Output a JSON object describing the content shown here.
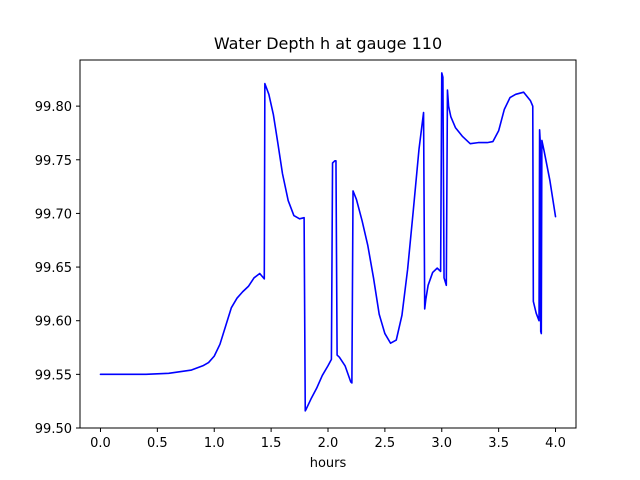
{
  "chart_data": {
    "type": "line",
    "title": "Water Depth h at gauge 110",
    "xlabel": "hours",
    "ylabel": "",
    "xlim": [
      -0.18,
      4.18
    ],
    "ylim": [
      99.5,
      99.843
    ],
    "x_ticks": [
      {
        "value": 0.0,
        "label": "0.0"
      },
      {
        "value": 0.5,
        "label": "0.5"
      },
      {
        "value": 1.0,
        "label": "1.0"
      },
      {
        "value": 1.5,
        "label": "1.5"
      },
      {
        "value": 2.0,
        "label": "2.0"
      },
      {
        "value": 2.5,
        "label": "2.5"
      },
      {
        "value": 3.0,
        "label": "3.0"
      },
      {
        "value": 3.5,
        "label": "3.5"
      },
      {
        "value": 4.0,
        "label": "4.0"
      }
    ],
    "y_ticks": [
      {
        "value": 99.5,
        "label": "99.50"
      },
      {
        "value": 99.55,
        "label": "99.55"
      },
      {
        "value": 99.6,
        "label": "99.60"
      },
      {
        "value": 99.65,
        "label": "99.65"
      },
      {
        "value": 99.7,
        "label": "99.70"
      },
      {
        "value": 99.75,
        "label": "99.75"
      },
      {
        "value": 99.8,
        "label": "99.80"
      }
    ],
    "grid": false,
    "legend": "none",
    "series": [
      {
        "color": "#0000ff",
        "x": [
          0.0,
          0.2,
          0.4,
          0.6,
          0.8,
          0.9,
          0.95,
          1.0,
          1.05,
          1.1,
          1.15,
          1.2,
          1.25,
          1.3,
          1.35,
          1.4,
          1.44,
          1.445,
          1.48,
          1.52,
          1.56,
          1.6,
          1.65,
          1.7,
          1.75,
          1.79,
          1.8,
          1.81,
          1.85,
          1.9,
          1.95,
          2.0,
          2.03,
          2.04,
          2.06,
          2.07,
          2.08,
          2.1,
          2.15,
          2.2,
          2.21,
          2.22,
          2.25,
          2.3,
          2.35,
          2.4,
          2.45,
          2.5,
          2.55,
          2.6,
          2.65,
          2.7,
          2.75,
          2.8,
          2.84,
          2.85,
          2.86,
          2.88,
          2.92,
          2.96,
          2.99,
          3.0,
          3.01,
          3.02,
          3.04,
          3.05,
          3.06,
          3.08,
          3.12,
          3.18,
          3.25,
          3.32,
          3.4,
          3.45,
          3.5,
          3.55,
          3.6,
          3.65,
          3.72,
          3.78,
          3.8,
          3.805,
          3.83,
          3.855,
          3.86,
          3.865,
          3.87,
          3.875,
          3.88,
          3.9,
          3.95,
          4.0
        ],
        "y": [
          99.55,
          99.55,
          99.55,
          99.551,
          99.554,
          99.558,
          99.561,
          99.567,
          99.578,
          99.595,
          99.612,
          99.621,
          99.627,
          99.632,
          99.64,
          99.644,
          99.639,
          99.821,
          99.811,
          99.792,
          99.765,
          99.737,
          99.712,
          99.698,
          99.695,
          99.696,
          99.516,
          99.518,
          99.527,
          99.537,
          99.549,
          99.558,
          99.564,
          99.747,
          99.749,
          99.749,
          99.568,
          99.566,
          99.558,
          99.543,
          99.542,
          99.721,
          99.713,
          99.693,
          99.67,
          99.64,
          99.606,
          99.588,
          99.579,
          99.582,
          99.605,
          99.648,
          99.703,
          99.76,
          99.794,
          99.611,
          99.62,
          99.633,
          99.645,
          99.649,
          99.646,
          99.831,
          99.827,
          99.64,
          99.633,
          99.815,
          99.8,
          99.79,
          99.78,
          99.772,
          99.765,
          99.766,
          99.766,
          99.767,
          99.777,
          99.797,
          99.808,
          99.811,
          99.813,
          99.805,
          99.8,
          99.618,
          99.607,
          99.6,
          99.778,
          99.768,
          99.59,
          99.588,
          99.768,
          99.758,
          99.731,
          99.697
        ]
      }
    ]
  }
}
